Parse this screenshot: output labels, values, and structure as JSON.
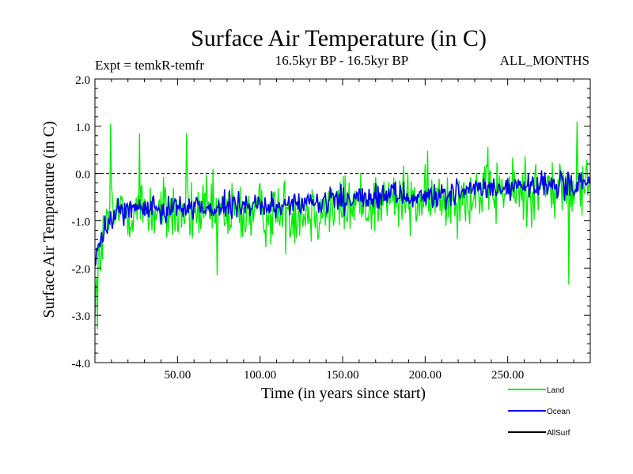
{
  "chart_data": {
    "type": "line",
    "title": "Surface Air Temperature (in C)",
    "subtitle_left": "Expt = temkR-temfr",
    "subtitle_center": "16.5kyr BP - 16.5kyr BP",
    "subtitle_right": "ALL_MONTHS",
    "xlabel": "Time (in years since start)",
    "ylabel": "Surface Air Temperature (in C)",
    "xlim": [
      0,
      300
    ],
    "ylim": [
      -4.0,
      2.0
    ],
    "xticks": [
      {
        "value": 50,
        "label": "50.00"
      },
      {
        "value": 100,
        "label": "100.00"
      },
      {
        "value": 150,
        "label": "150.00"
      },
      {
        "value": 200,
        "label": "200.00"
      },
      {
        "value": 250,
        "label": "250.00"
      }
    ],
    "yticks": [
      {
        "value": 2.0,
        "label": "2.0"
      },
      {
        "value": 1.0,
        "label": "1.0"
      },
      {
        "value": 0.0,
        "label": "0.0"
      },
      {
        "value": -1.0,
        "label": "-1.0"
      },
      {
        "value": -2.0,
        "label": "-2.0"
      },
      {
        "value": -3.0,
        "label": "-3.0"
      },
      {
        "value": -4.0,
        "label": "-4.0"
      }
    ],
    "reference_line": {
      "y": 0.0,
      "style": "dashed"
    },
    "x_step": 0.5,
    "series": [
      {
        "name": "Land",
        "color": "#00ee00",
        "trend": [
          [
            0,
            -2.6
          ],
          [
            3,
            -1.7
          ],
          [
            8,
            -0.9
          ],
          [
            20,
            -0.75
          ],
          [
            50,
            -0.85
          ],
          [
            100,
            -0.85
          ],
          [
            150,
            -0.7
          ],
          [
            180,
            -0.55
          ],
          [
            200,
            -0.6
          ],
          [
            230,
            -0.4
          ],
          [
            260,
            -0.35
          ],
          [
            300,
            -0.3
          ]
        ],
        "noise_amplitude": 0.75,
        "extremes": [
          [
            1.5,
            -3.3
          ],
          [
            9.5,
            1.05
          ],
          [
            27,
            0.85
          ],
          [
            55.5,
            0.85
          ],
          [
            74,
            -2.15
          ],
          [
            292,
            1.1
          ],
          [
            287,
            -2.35
          ]
        ]
      },
      {
        "name": "Ocean",
        "color": "#0000ee",
        "trend": [
          [
            0,
            -1.9
          ],
          [
            3,
            -1.5
          ],
          [
            6,
            -1.2
          ],
          [
            15,
            -0.75
          ],
          [
            50,
            -0.7
          ],
          [
            100,
            -0.7
          ],
          [
            150,
            -0.6
          ],
          [
            180,
            -0.45
          ],
          [
            200,
            -0.5
          ],
          [
            230,
            -0.35
          ],
          [
            260,
            -0.3
          ],
          [
            300,
            -0.2
          ]
        ],
        "noise_amplitude": 0.3
      },
      {
        "name": "AllSurf",
        "color": "#000000",
        "trend": [],
        "noise_amplitude": 0
      }
    ],
    "legend_position": "bottom-right"
  }
}
